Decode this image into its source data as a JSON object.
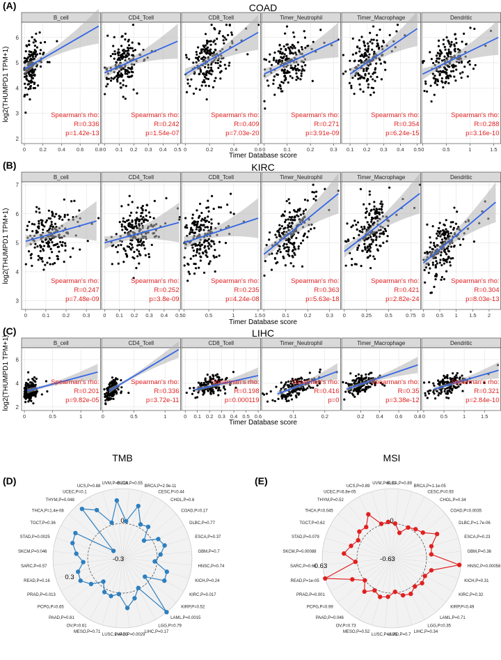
{
  "figure": {
    "colors": {
      "point": "#000000",
      "line": "#3366e6",
      "band": "#b3b3b3",
      "annotation": "#e02020",
      "tmb": "#2e7fbf",
      "msi": "#e02020",
      "strip": "#d9d9d9",
      "grid": "#dddddd"
    }
  },
  "chart_data": [
    {
      "type": "scatter",
      "panel_label": "(A)",
      "title": "COAD",
      "xlabel": "Timer Database score",
      "ylabel": "log2(THUMPD1 TPM+1)",
      "ylim": [
        1.8,
        6.6
      ],
      "yticks": [
        2,
        3,
        4,
        5,
        6
      ],
      "facets": [
        {
          "name": "B_cell",
          "xlim": [
            -0.03,
            0.82
          ],
          "xticks": [
            0.0,
            0.2,
            0.4,
            0.6,
            0.8
          ],
          "line": [
            [
              0.0,
              4.75
            ],
            [
              0.8,
              6.45
            ]
          ],
          "cx": 0.06,
          "sx": 0.05,
          "cy": 4.9,
          "sy": 0.65,
          "n": 160,
          "label1": "Spearman's rho:",
          "label2": "R=0.336",
          "label3": "p=1.42e-13"
        },
        {
          "name": "CD4_Tcell",
          "xlim": [
            -0.02,
            0.52
          ],
          "xticks": [
            0.0,
            0.1,
            0.2,
            0.3,
            0.4,
            0.5
          ],
          "line": [
            [
              0.0,
              4.6
            ],
            [
              0.5,
              5.85
            ]
          ],
          "cx": 0.12,
          "sx": 0.05,
          "cy": 5.0,
          "sy": 0.65,
          "n": 170,
          "label1": "Spearman's rho:",
          "label2": "R=0.242",
          "label3": "p=1.54e-07"
        },
        {
          "name": "CD8_Tcell",
          "xlim": [
            -0.03,
            0.62
          ],
          "xticks": [
            0.0,
            0.2,
            0.4,
            0.6
          ],
          "line": [
            [
              0.0,
              4.55
            ],
            [
              0.6,
              6.2
            ]
          ],
          "cx": 0.2,
          "sx": 0.09,
          "cy": 5.0,
          "sy": 0.65,
          "n": 180,
          "label1": "Spearman's rho:",
          "label2": "R=0.409",
          "label3": "p=7.03e-20"
        },
        {
          "name": "Timer_Neutrophil",
          "xlim": [
            -0.01,
            0.33
          ],
          "xticks": [
            0.0,
            0.1,
            0.2,
            0.3
          ],
          "line": [
            [
              0.0,
              4.55
            ],
            [
              0.32,
              5.9
            ]
          ],
          "cx": 0.1,
          "sx": 0.04,
          "cy": 5.0,
          "sy": 0.65,
          "n": 180,
          "label1": "Spearman's rho:",
          "label2": "R=0.271",
          "label3": "p=3.91e-09"
        },
        {
          "name": "Timer_Macrophage",
          "xlim": [
            0.05,
            0.52
          ],
          "xticks": [
            0.1,
            0.2,
            0.3,
            0.4,
            0.5
          ],
          "line": [
            [
              0.1,
              4.55
            ],
            [
              0.5,
              6.35
            ]
          ],
          "cx": 0.2,
          "sx": 0.05,
          "cy": 5.0,
          "sy": 0.65,
          "n": 170,
          "label1": "Spearman's rho:",
          "label2": "R=0.354",
          "label3": "p=6.24e-15"
        },
        {
          "name": "Dendritic",
          "xlim": [
            -0.02,
            1.65
          ],
          "xticks": [
            0.0,
            0.5,
            1.0,
            1.5
          ],
          "line": [
            [
              0.0,
              4.55
            ],
            [
              1.6,
              6.0
            ]
          ],
          "cx": 0.55,
          "sx": 0.22,
          "cy": 5.0,
          "sy": 0.65,
          "n": 180,
          "label1": "Spearman's rho:",
          "label2": "R=0.288",
          "label3": "p=3.16e-10"
        }
      ]
    },
    {
      "type": "scatter",
      "panel_label": "(B)",
      "title": "KIRC",
      "xlabel": "Timer Database score",
      "ylabel": "log2(THUMPD1 TPM+1)",
      "ylim": [
        2.7,
        7.1
      ],
      "yticks": [
        3,
        4,
        5,
        6,
        7
      ],
      "facets": [
        {
          "name": "B_cell",
          "xlim": [
            -0.02,
            0.37
          ],
          "xticks": [
            0.0,
            0.1,
            0.2,
            0.3
          ],
          "line": [
            [
              0.0,
              5.05
            ],
            [
              0.35,
              5.75
            ]
          ],
          "cx": 0.12,
          "sx": 0.06,
          "cy": 5.1,
          "sy": 0.65,
          "n": 190,
          "label1": "Spearman's rho:",
          "label2": "R=0.247",
          "label3": "p=7.48e-09"
        },
        {
          "name": "CD4_Tcell",
          "xlim": [
            -0.02,
            0.51
          ],
          "xticks": [
            0.0,
            0.1,
            0.2,
            0.3,
            0.4,
            0.5
          ],
          "line": [
            [
              0.0,
              5.0
            ],
            [
              0.5,
              5.7
            ]
          ],
          "cx": 0.2,
          "sx": 0.08,
          "cy": 5.1,
          "sy": 0.65,
          "n": 200,
          "label1": "Spearman's rho:",
          "label2": "R=0.252",
          "label3": "p=3.8e-09"
        },
        {
          "name": "CD8_Tcell",
          "xlim": [
            -0.05,
            1.55
          ],
          "xticks": [
            0.0,
            0.5,
            1.0,
            1.5
          ],
          "line": [
            [
              0.0,
              5.0
            ],
            [
              1.5,
              5.85
            ]
          ],
          "cx": 0.35,
          "sx": 0.18,
          "cy": 5.1,
          "sy": 0.65,
          "n": 190,
          "label1": "Spearman's rho:",
          "label2": "R=0.235",
          "label3": "p=4.24e-08"
        },
        {
          "name": "Timer_Neutrophil",
          "xlim": [
            -0.01,
            0.35
          ],
          "xticks": [
            0.0,
            0.1,
            0.2,
            0.3
          ],
          "line": [
            [
              0.0,
              4.6
            ],
            [
              0.34,
              6.7
            ]
          ],
          "cx": 0.12,
          "sx": 0.045,
          "cy": 5.1,
          "sy": 0.6,
          "n": 200,
          "label1": "Spearman's rho:",
          "label2": "R=0.363",
          "label3": "p=5.63e-18"
        },
        {
          "name": "Timer_Macrophage",
          "xlim": [
            -0.03,
            0.86
          ],
          "xticks": [
            0.0,
            0.25,
            0.5,
            0.75
          ],
          "line": [
            [
              0.0,
              4.7
            ],
            [
              0.85,
              6.7
            ]
          ],
          "cx": 0.3,
          "sx": 0.1,
          "cy": 5.1,
          "sy": 0.6,
          "n": 190,
          "label1": "Spearman's rho:",
          "label2": "R=0.421",
          "label3": "p=2.82e-24"
        },
        {
          "name": "Dendritic",
          "xlim": [
            -0.05,
            2.35
          ],
          "xticks": [
            0.0,
            0.5,
            1.0,
            1.5,
            2.0
          ],
          "line": [
            [
              0.0,
              4.3
            ],
            [
              2.2,
              6.4
            ]
          ],
          "cx": 0.6,
          "sx": 0.3,
          "cy": 5.1,
          "sy": 0.6,
          "n": 200,
          "label1": "Spearman's rho:",
          "label2": "R=0.304",
          "label3": "p=8.03e-13"
        }
      ]
    },
    {
      "type": "scatter",
      "panel_label": "(C)",
      "title": "LIHC",
      "xlabel": "Timer Database score",
      "ylabel": "log2(THUMPD1 TPM+1)",
      "ylim": [
        1.7,
        7.0
      ],
      "yticks": [
        2,
        4,
        6
      ],
      "facets": [
        {
          "name": "B_cell",
          "xlim": [
            -0.05,
            1.35
          ],
          "xticks": [
            0.0,
            0.5,
            1.0
          ],
          "line": [
            [
              0.05,
              3.35
            ],
            [
              1.3,
              4.95
            ]
          ],
          "cx": 0.1,
          "sx": 0.06,
          "cy": 3.7,
          "sy": 0.55,
          "n": 150,
          "label1": "Spearman's rho:",
          "label2": "R=0.201",
          "label3": "p=9.82e-05"
        },
        {
          "name": "CD4_Tcell",
          "xlim": [
            -0.02,
            1.25
          ],
          "xticks": [
            0.0,
            0.5,
            1.0
          ],
          "line": [
            [
              0.1,
              3.35
            ],
            [
              1.22,
              6.85
            ]
          ],
          "cx": 0.15,
          "sx": 0.05,
          "cy": 3.7,
          "sy": 0.55,
          "n": 150,
          "label1": "Spearman's rho:",
          "label2": "R=0.336",
          "label3": "p=3.72e-11"
        },
        {
          "name": "CD8_Tcell",
          "xlim": [
            -0.03,
            0.62
          ],
          "xticks": [
            0.0,
            0.1,
            0.2,
            0.3,
            0.4,
            0.5,
            0.6
          ],
          "line": [
            [
              0.08,
              3.45
            ],
            [
              0.6,
              4.65
            ]
          ],
          "cx": 0.2,
          "sx": 0.05,
          "cy": 3.8,
          "sy": 0.5,
          "n": 150,
          "label1": "Spearman's rho:",
          "label2": "R=0.198",
          "label3": "p=0.000119"
        },
        {
          "name": "Timer_Neutrophil",
          "xlim": [
            0.0,
            0.25
          ],
          "xticks": [
            0.1,
            0.2
          ],
          "line": [
            [
              0.05,
              3.1
            ],
            [
              0.24,
              5.0
            ]
          ],
          "cx": 0.11,
          "sx": 0.03,
          "cy": 3.8,
          "sy": 0.5,
          "n": 150,
          "label1": "Spearman's rho:",
          "label2": "R=0.416",
          "label3": "p=0"
        },
        {
          "name": "Timer_Macrophage",
          "xlim": [
            0.0,
            0.83
          ],
          "xticks": [
            0.2,
            0.4,
            0.6,
            0.8
          ],
          "line": [
            [
              0.05,
              3.5
            ],
            [
              0.8,
              5.55
            ]
          ],
          "cx": 0.2,
          "sx": 0.08,
          "cy": 3.8,
          "sy": 0.5,
          "n": 150,
          "label1": "Spearman's rho:",
          "label2": "R=0.35",
          "label3": "p=3.38e-12"
        },
        {
          "name": "Dendritic",
          "xlim": [
            -0.05,
            1.9
          ],
          "xticks": [
            0.0,
            0.5,
            1.0,
            1.5
          ],
          "line": [
            [
              0.25,
              3.5
            ],
            [
              1.85,
              5.1
            ]
          ],
          "cx": 0.55,
          "sx": 0.2,
          "cy": 3.8,
          "sy": 0.5,
          "n": 150,
          "label1": "Spearman's rho:",
          "label2": "R=0.321",
          "label3": "p=2.84e-10"
        }
      ]
    },
    {
      "type": "radar",
      "panel_label": "(D)",
      "title": "TMB",
      "rlim": [
        -0.3,
        0.3
      ],
      "rings": [
        "-0.3",
        "0",
        "0.3"
      ],
      "categories": [
        "BLCA,P=0.55",
        "BRCA,P=2.9e-11",
        "CESC,P=0.44",
        "CHOL,P=0.6",
        "COAD,P=0.17",
        "DLBC,P=0.77",
        "ESCA,P=0.37",
        "GBM,P=0.7",
        "HNSC,P=0.74",
        "KICH,P=0.24",
        "KIRC,P=0.017",
        "KIRP,P=0.52",
        "LAML,P=0.0015",
        "LGG,P=0.79",
        "LIHC,P=0.17",
        "LUAD,P=0.0029",
        "LUSC,P=0.33",
        "MESO,P=0.71",
        "OV,P=0.61",
        "PAAD,P=0.61",
        "PCPG,P=0.65",
        "PRAD,P=0.013",
        "READ,P=0.16",
        "SARC,P=0.57",
        "SKCM,P=0.046",
        "STAD,P=0.0025",
        "TGCT,P=0.36",
        "THCA,P=1.4e-08",
        "THYM,P=0.048",
        "UCEC,P=0.1",
        "UCS,P=0.88",
        "UVM,P=0.028"
      ],
      "values": [
        0.02,
        0.17,
        0.03,
        0.05,
        -0.06,
        0.05,
        0.08,
        0.03,
        -0.02,
        0.1,
        0.11,
        -0.05,
        0.3,
        -0.01,
        0.06,
        0.13,
        0.01,
        0.04,
        0.03,
        -0.04,
        0.05,
        0.11,
        0.1,
        0.04,
        0.1,
        0.15,
        0.16,
        -0.2,
        0.25,
        0.17,
        0.02,
        0.2
      ]
    },
    {
      "type": "radar",
      "panel_label": "(E)",
      "title": "MSI",
      "rlim": [
        -0.63,
        0.63
      ],
      "rings": [
        "-0.63",
        "0",
        "0.63"
      ],
      "categories": [
        "BLCA,P=0.89",
        "BRCA,P=1.1e-05",
        "CESC,P=0.93",
        "CHOL,P=0.34",
        "COAD,P=0.0035",
        "DLBC,P=1.7e-06",
        "ESCA,P=0.23",
        "GBM,P=0.36",
        "HNSC,P=0.00058",
        "KICH,P=0.31",
        "KIRC,P=0.32",
        "KIRP,P=0.49",
        "LAML,P=0.71",
        "LGG,P=0.35",
        "LIHC,P=0.34",
        "LUAD,P=0.7",
        "LUSC,P=0.25",
        "MESO,P=0.52",
        "OV,P=0.73",
        "PAAD,P=0.046",
        "PCPG,P=0.99",
        "PRAD,P=0.001",
        "READ,P=1e-05",
        "SARC,P=0.66",
        "SKCM,P=0.00088",
        "STAD,P=0.079",
        "TGCT,P=0.62",
        "THCA,P=0.045",
        "THYM,P=0.52",
        "UCEC,P=6.8e-05",
        "UCS,P=0.89",
        "UVM,P=0.81"
      ],
      "values": [
        0.0,
        -0.15,
        0.0,
        0.05,
        0.1,
        0.3,
        0.12,
        0.09,
        0.6,
        0.12,
        0.05,
        0.08,
        0.03,
        0.1,
        0.07,
        -0.02,
        0.07,
        0.1,
        0.03,
        0.15,
        0.0,
        0.18,
        0.63,
        0.03,
        0.24,
        0.14,
        0.06,
        0.13,
        0.1,
        0.27,
        0.02,
        0.03
      ]
    }
  ]
}
